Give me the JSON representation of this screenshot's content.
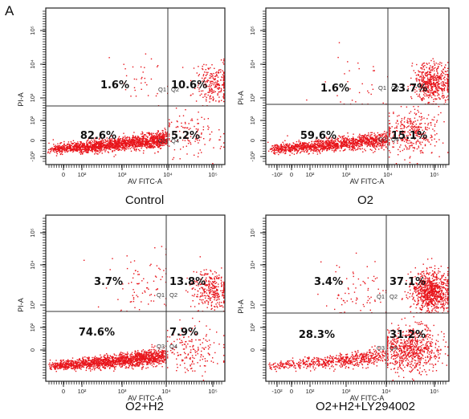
{
  "figure_label": "A",
  "colors": {
    "dots": "#e8141b",
    "axes": "#222222",
    "gates": "#333333"
  },
  "chart_data": [
    {
      "type": "scatter",
      "caption": "Control",
      "xlabel": "AV FITC-A",
      "ylabel": "PI-A",
      "xscale": "biexponential",
      "yscale": "biexponential",
      "x_ticks": [
        "0",
        "10²",
        "10³",
        "10⁴",
        "10⁵"
      ],
      "y_ticks": [
        "-10²",
        "0",
        "10²",
        "10³",
        "10⁴",
        "10⁵"
      ],
      "quadrants": [
        {
          "id": "Q1",
          "percent": "1.6%"
        },
        {
          "id": "Q2",
          "percent": "10.6%"
        },
        {
          "id": "Q3",
          "percent": "82.6%"
        },
        {
          "id": "Q4",
          "percent": "5.2%"
        }
      ]
    },
    {
      "type": "scatter",
      "caption": "O2",
      "xlabel": "AV FITC-A",
      "ylabel": "PI-A",
      "xscale": "biexponential",
      "yscale": "biexponential",
      "x_ticks": [
        "-10²",
        "0",
        "10²",
        "10³",
        "10⁴",
        "10⁵"
      ],
      "y_ticks": [
        "-10²",
        "0",
        "10²",
        "10³",
        "10⁴",
        "10⁵"
      ],
      "quadrants": [
        {
          "id": "Q1",
          "percent": "1.6%"
        },
        {
          "id": "Q2",
          "percent": "23.7%"
        },
        {
          "id": "Q3",
          "percent": "59.6%"
        },
        {
          "id": "Q4",
          "percent": "15.1%"
        }
      ]
    },
    {
      "type": "scatter",
      "caption": "O2+H2",
      "xlabel": "AV FITC-A",
      "ylabel": "PI-A",
      "xscale": "biexponential",
      "yscale": "biexponential",
      "x_ticks": [
        "0",
        "10²",
        "10³",
        "10⁴",
        "10⁵"
      ],
      "y_ticks": [
        "0",
        "10²",
        "10³",
        "10⁴",
        "10⁵"
      ],
      "quadrants": [
        {
          "id": "Q1",
          "percent": "3.7%"
        },
        {
          "id": "Q2",
          "percent": "13.8%"
        },
        {
          "id": "Q3",
          "percent": "74.6%"
        },
        {
          "id": "Q4",
          "percent": "7.9%"
        }
      ]
    },
    {
      "type": "scatter",
      "caption": "O2+H2+LY294002",
      "xlabel": "AV FITC-A",
      "ylabel": "PI-A",
      "xscale": "biexponential",
      "yscale": "biexponential",
      "x_ticks": [
        "-10²",
        "0",
        "10²",
        "10³",
        "10⁴",
        "10⁵"
      ],
      "y_ticks": [
        "0",
        "10²",
        "10³",
        "10⁴",
        "10⁵"
      ],
      "quadrants": [
        {
          "id": "Q1",
          "percent": "3.4%"
        },
        {
          "id": "Q2",
          "percent": "37.1%"
        },
        {
          "id": "Q3",
          "percent": "28.3%"
        },
        {
          "id": "Q4",
          "percent": "31.2%"
        }
      ]
    }
  ]
}
